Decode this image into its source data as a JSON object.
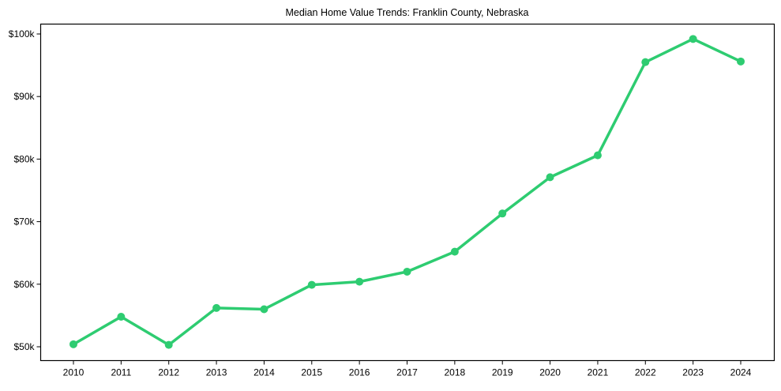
{
  "chart_data": {
    "type": "line",
    "title": "Median Home Value Trends: Franklin County, Nebraska",
    "xlabel": "",
    "ylabel": "",
    "categories": [
      "2010",
      "2011",
      "2012",
      "2013",
      "2014",
      "2015",
      "2016",
      "2017",
      "2018",
      "2019",
      "2020",
      "2021",
      "2022",
      "2023",
      "2024"
    ],
    "series": [
      {
        "name": "Median Home Value",
        "color": "#2ecc71",
        "values": [
          50400,
          54800,
          50300,
          56200,
          56000,
          59900,
          60400,
          62000,
          65200,
          71300,
          77100,
          80600,
          95500,
          99200,
          95600
        ]
      }
    ],
    "y_ticks": [
      50000,
      60000,
      70000,
      80000,
      90000,
      100000
    ],
    "y_tick_labels": [
      "$50k",
      "$60k",
      "$70k",
      "$80k",
      "$90k",
      "$100k"
    ],
    "ylim": [
      48500,
      101700
    ],
    "grid": false,
    "legend": null,
    "markers": true
  }
}
